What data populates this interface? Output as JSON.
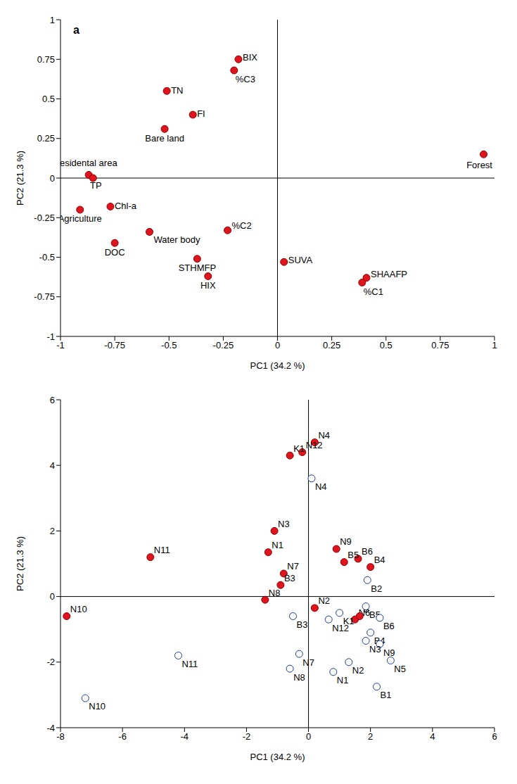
{
  "chart_data": [
    {
      "type": "scatter",
      "annotation": "a",
      "x_label": "PC1 (34.2 %)",
      "y_label": "PC2 (21.3 %)",
      "xlim": [
        -1,
        1
      ],
      "ylim": [
        -1,
        1
      ],
      "xticks": [
        -1,
        -0.75,
        -0.5,
        -0.25,
        0,
        0.25,
        0.5,
        0.75,
        1
      ],
      "yticks": [
        -1,
        -0.75,
        -0.5,
        -0.25,
        0,
        0.25,
        0.5,
        0.75,
        1
      ],
      "series": [
        {
          "color": "#e0141e",
          "marker": "circle",
          "labels": [
            "BIX",
            "%C3",
            "TN",
            "FI",
            "Bare land",
            "Residental area",
            "TP",
            "Agriculture",
            "Chl-a",
            "DOC",
            "Water body",
            "%C2",
            "STHMFP",
            "HIX",
            "SUVA",
            "SHAAFP",
            "%C1",
            "Forest"
          ],
          "x": [
            -0.18,
            -0.2,
            -0.51,
            -0.39,
            -0.52,
            -0.87,
            -0.85,
            -0.91,
            -0.77,
            -0.75,
            -0.59,
            -0.23,
            -0.37,
            -0.32,
            0.03,
            0.41,
            0.39,
            0.95
          ],
          "y": [
            0.75,
            0.68,
            0.55,
            0.4,
            0.31,
            0.02,
            0.0,
            -0.2,
            -0.18,
            -0.41,
            -0.34,
            -0.33,
            -0.51,
            -0.62,
            -0.53,
            -0.63,
            -0.66,
            0.15
          ]
        }
      ]
    },
    {
      "type": "scatter",
      "x_label": "PC1 (34.2 %)",
      "y_label": "PC2 (21.3 %)",
      "xlim": [
        -8,
        6
      ],
      "ylim": [
        -4,
        6
      ],
      "xticks": [
        -8,
        -6,
        -4,
        -2,
        0,
        2,
        4,
        6
      ],
      "yticks": [
        -4,
        -2,
        0,
        2,
        4,
        6
      ],
      "series": [
        {
          "color": "#e0141e",
          "marker": "circle",
          "labels": [
            "N4",
            "N12",
            "K1",
            "N3",
            "N1",
            "N11",
            "N7",
            "B3",
            "N8",
            "N10",
            "N9",
            "B6",
            "B5",
            "B4",
            "N2",
            "N6",
            "B"
          ],
          "x": [
            0.2,
            -0.2,
            -0.6,
            -1.1,
            -1.3,
            -5.1,
            -0.8,
            -0.9,
            -1.4,
            -7.8,
            0.9,
            1.6,
            1.15,
            2.0,
            0.2,
            1.5,
            1.65
          ],
          "y": [
            4.7,
            4.4,
            4.3,
            2.0,
            1.35,
            1.2,
            0.7,
            0.35,
            -0.1,
            -0.6,
            1.45,
            1.15,
            1.05,
            0.9,
            -0.35,
            -0.7,
            -0.6
          ]
        },
        {
          "color": "#1f3d8c",
          "marker": "open_circle",
          "labels": [
            "N4",
            "B2",
            "K1",
            "B5",
            "B6",
            "N12",
            "B3",
            "B4",
            "N9",
            "N3",
            "N7",
            "N5",
            "N2",
            "N8",
            "N1",
            "B1",
            "N11",
            "N10"
          ],
          "x": [
            0.1,
            1.9,
            1.0,
            1.85,
            2.3,
            0.65,
            -0.5,
            2.0,
            2.3,
            1.85,
            -0.3,
            2.65,
            1.3,
            -0.6,
            0.8,
            2.2,
            -4.2,
            -7.2
          ],
          "y": [
            3.6,
            0.5,
            -0.5,
            -0.3,
            -0.65,
            -0.7,
            -0.6,
            -1.1,
            -1.45,
            -1.35,
            -1.75,
            -1.95,
            -2.0,
            -2.2,
            -2.3,
            -2.75,
            -1.8,
            -3.1
          ]
        }
      ]
    }
  ]
}
